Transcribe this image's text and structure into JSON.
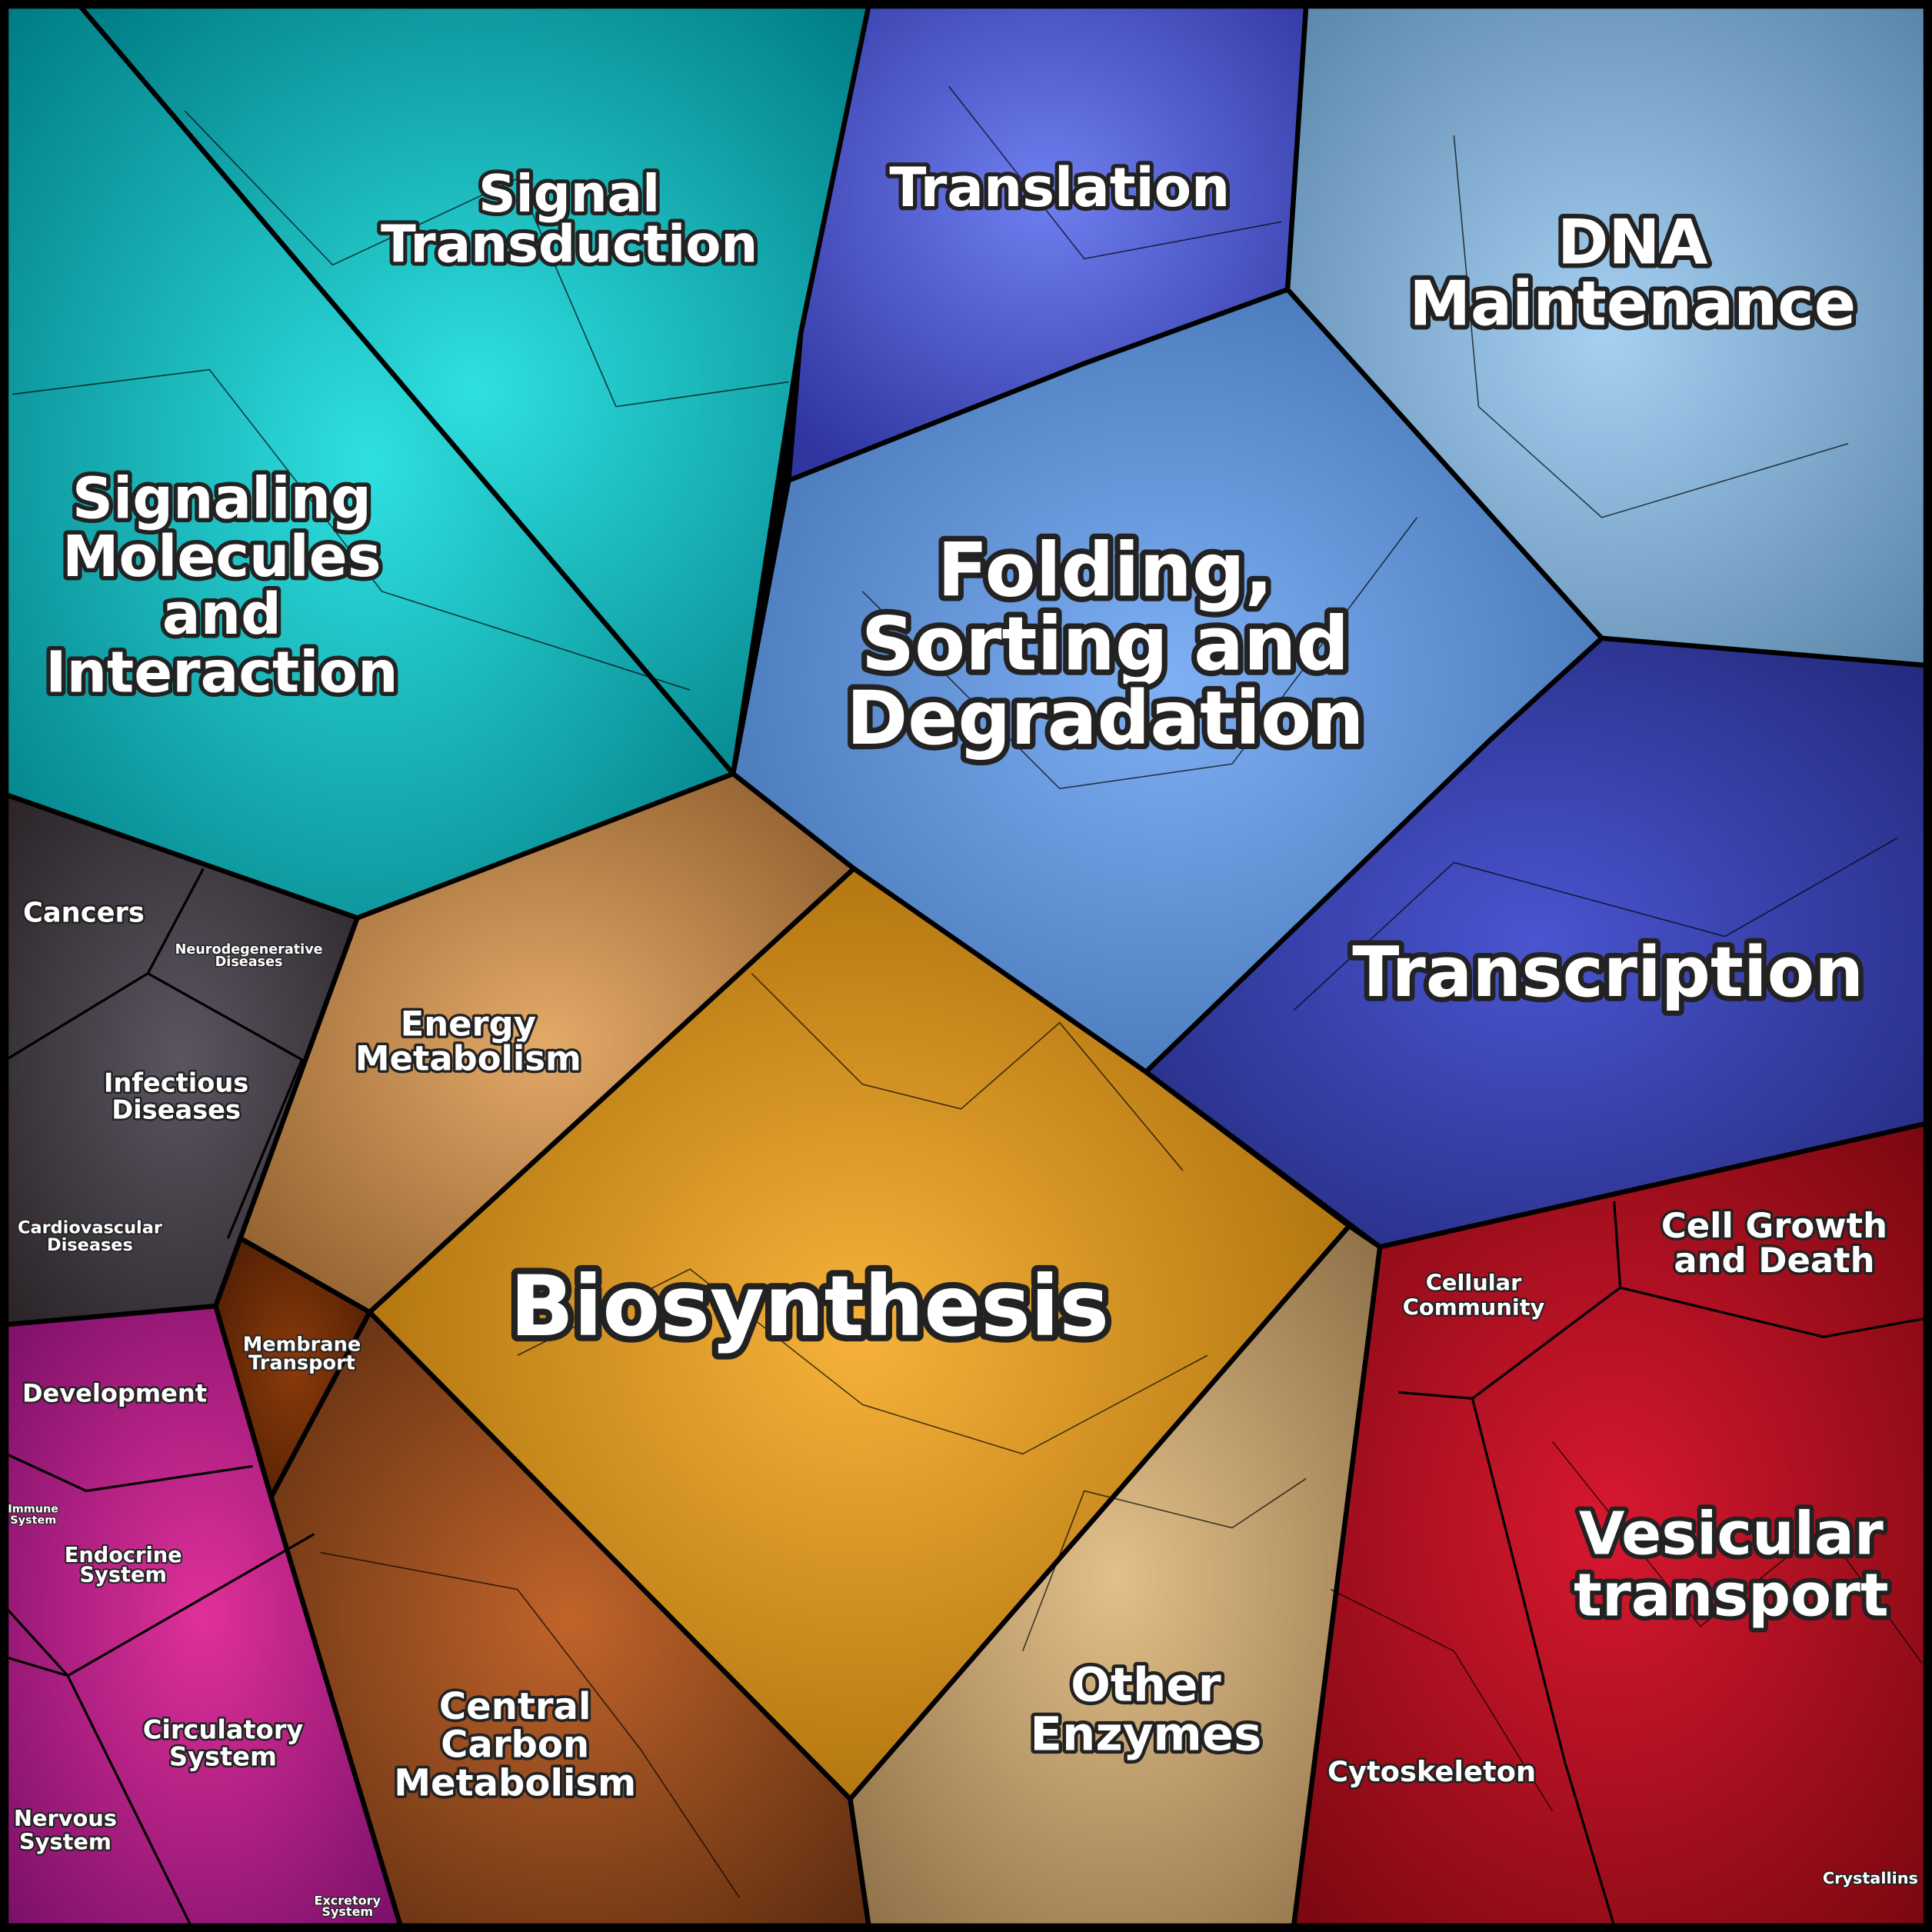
{
  "regions": [
    {
      "label": [
        "Signal",
        "Transduction"
      ]
    },
    {
      "label": [
        "Signaling",
        "Molecules",
        "and",
        "Interaction"
      ]
    },
    {
      "label": [
        "Translation"
      ]
    },
    {
      "label": [
        "DNA",
        "Maintenance"
      ]
    },
    {
      "label": [
        "Folding,",
        "Sorting and",
        "Degradation"
      ]
    },
    {
      "label": [
        "Transcription"
      ]
    },
    {
      "label": [
        "Biosynthesis"
      ]
    },
    {
      "label": [
        "Energy",
        "Metabolism"
      ]
    },
    {
      "label": [
        "Other",
        "Enzymes"
      ]
    },
    {
      "label": [
        "Central",
        "Carbon",
        "Metabolism"
      ]
    },
    {
      "label": [
        "Membrane",
        "Transport"
      ]
    },
    {
      "label": [
        "Cancers"
      ]
    },
    {
      "label": [
        "Neurodegenerative",
        "Diseases"
      ]
    },
    {
      "label": [
        "Infectious",
        "Diseases"
      ]
    },
    {
      "label": [
        "Cardiovascular",
        "Diseases"
      ]
    },
    {
      "label": [
        "Development"
      ]
    },
    {
      "label": [
        "Immune",
        "System"
      ]
    },
    {
      "label": [
        "Endocrine",
        "System"
      ]
    },
    {
      "label": [
        "Circulatory",
        "System"
      ]
    },
    {
      "label": [
        "Nervous",
        "System"
      ]
    },
    {
      "label": [
        "Excretory",
        "System"
      ]
    },
    {
      "label": [
        "Cellular",
        "Community"
      ]
    },
    {
      "label": [
        "Cell Growth",
        "and Death"
      ]
    },
    {
      "label": [
        "Vesicular",
        "transport"
      ]
    },
    {
      "label": [
        "Cytoskeleton"
      ]
    },
    {
      "label": [
        "Crystallins"
      ]
    }
  ]
}
